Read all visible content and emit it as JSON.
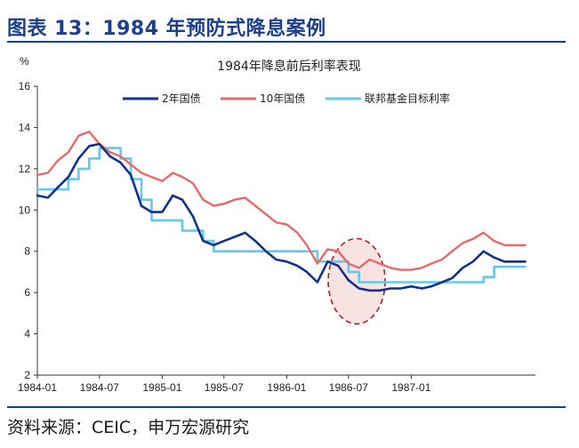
{
  "figure_title": "图表 13：1984 年预防式降息案例",
  "source_text": "资料来源：CEIC，申万宏源研究",
  "colors": {
    "brand": "#1c3f8c",
    "series_2y": "#12328c",
    "series_10y": "#e8696a",
    "series_ffr": "#63c8ec",
    "highlight_stroke": "#b01e1e",
    "highlight_fill": "#f6dada"
  },
  "chart_data": {
    "type": "line",
    "title": "1984年降息前后利率表现",
    "ylabel": "%",
    "xlabel": "",
    "ylim": [
      2,
      16
    ],
    "yticks": [
      2,
      4,
      6,
      8,
      10,
      12,
      14,
      16
    ],
    "xlim": [
      "1984-01-01",
      "1987-12-31"
    ],
    "xticks": [
      "1984-01",
      "1984-07",
      "1985-01",
      "1985-07",
      "1986-01",
      "1986-07",
      "1987-01"
    ],
    "grid": false,
    "legend_position": "top",
    "series": [
      {
        "name": "2年国债",
        "x": [
          "1984-01",
          "1984-02",
          "1984-03",
          "1984-04",
          "1984-05",
          "1984-06",
          "1984-07",
          "1984-08",
          "1984-09",
          "1984-10",
          "1984-11",
          "1984-12",
          "1985-01",
          "1985-02",
          "1985-03",
          "1985-04",
          "1985-05",
          "1985-06",
          "1985-07",
          "1985-08",
          "1985-09",
          "1985-10",
          "1985-11",
          "1985-12",
          "1986-01",
          "1986-02",
          "1986-03",
          "1986-04",
          "1986-05",
          "1986-06",
          "1986-07",
          "1986-08",
          "1986-09",
          "1986-10",
          "1986-11",
          "1986-12",
          "1987-01",
          "1987-02",
          "1987-03",
          "1987-04",
          "1987-05",
          "1987-06",
          "1987-07",
          "1987-08",
          "1987-09",
          "1987-10",
          "1987-11",
          "1987-12"
        ],
        "values": [
          10.7,
          10.6,
          11.1,
          11.6,
          12.5,
          13.1,
          13.2,
          12.6,
          12.3,
          11.7,
          10.2,
          9.9,
          9.9,
          10.7,
          10.5,
          9.7,
          8.5,
          8.3,
          8.5,
          8.7,
          8.9,
          8.5,
          8.0,
          7.6,
          7.5,
          7.3,
          7.0,
          6.5,
          7.5,
          7.3,
          6.6,
          6.2,
          6.1,
          6.1,
          6.2,
          6.2,
          6.3,
          6.2,
          6.3,
          6.5,
          6.7,
          7.2,
          7.5,
          8.0,
          7.7,
          7.5,
          7.5,
          7.5
        ]
      },
      {
        "name": "10年国债",
        "x": [
          "1984-01",
          "1984-02",
          "1984-03",
          "1984-04",
          "1984-05",
          "1984-06",
          "1984-07",
          "1984-08",
          "1984-09",
          "1984-10",
          "1984-11",
          "1984-12",
          "1985-01",
          "1985-02",
          "1985-03",
          "1985-04",
          "1985-05",
          "1985-06",
          "1985-07",
          "1985-08",
          "1985-09",
          "1985-10",
          "1985-11",
          "1985-12",
          "1986-01",
          "1986-02",
          "1986-03",
          "1986-04",
          "1986-05",
          "1986-06",
          "1986-07",
          "1986-08",
          "1986-09",
          "1986-10",
          "1986-11",
          "1986-12",
          "1987-01",
          "1987-02",
          "1987-03",
          "1987-04",
          "1987-05",
          "1987-06",
          "1987-07",
          "1987-08",
          "1987-09",
          "1987-10",
          "1987-11",
          "1987-12"
        ],
        "values": [
          11.7,
          11.8,
          12.4,
          12.8,
          13.6,
          13.8,
          13.2,
          12.8,
          12.6,
          12.2,
          11.8,
          11.6,
          11.4,
          11.8,
          11.6,
          11.3,
          10.5,
          10.2,
          10.3,
          10.5,
          10.6,
          10.2,
          9.8,
          9.4,
          9.3,
          8.9,
          8.3,
          7.4,
          8.1,
          8.0,
          7.4,
          7.2,
          7.6,
          7.4,
          7.2,
          7.1,
          7.1,
          7.2,
          7.4,
          7.6,
          8.0,
          8.4,
          8.6,
          8.9,
          8.5,
          8.3,
          8.3,
          8.3
        ]
      },
      {
        "name": "联邦基金目标利率",
        "x": [
          "1984-01",
          "1984-03",
          "1984-04",
          "1984-05",
          "1984-06",
          "1984-07",
          "1984-08",
          "1984-09",
          "1984-10",
          "1984-11",
          "1984-12",
          "1985-01",
          "1985-03",
          "1985-05",
          "1985-06",
          "1985-07",
          "1985-09",
          "1985-11",
          "1986-01",
          "1986-03",
          "1986-04",
          "1986-05",
          "1986-07",
          "1986-08",
          "1986-10",
          "1986-12",
          "1987-01",
          "1987-03",
          "1987-05",
          "1987-06",
          "1987-08",
          "1987-09",
          "1987-12"
        ],
        "values": [
          11.0,
          11.0,
          11.5,
          12.0,
          12.5,
          13.0,
          13.0,
          12.5,
          11.5,
          10.5,
          9.5,
          9.5,
          9.0,
          8.5,
          8.0,
          8.0,
          8.0,
          8.0,
          8.0,
          8.0,
          7.5,
          7.5,
          7.0,
          6.5,
          6.5,
          6.5,
          6.5,
          6.5,
          6.5,
          6.5,
          6.75,
          7.25,
          7.25
        ]
      }
    ]
  }
}
